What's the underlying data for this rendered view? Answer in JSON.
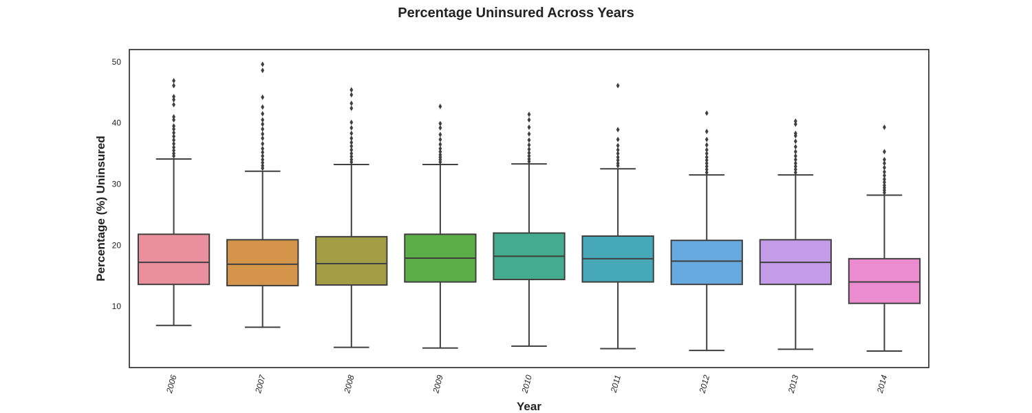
{
  "chart_data": {
    "type": "box",
    "title": "Percentage Uninsured Across Years",
    "xlabel": "Year",
    "ylabel": "Percentage (%) Uninsured",
    "ylim": [
      0,
      52
    ],
    "yticks": [
      10,
      20,
      30,
      40,
      50
    ],
    "grid": false,
    "categories": [
      "2006",
      "2007",
      "2008",
      "2009",
      "2010",
      "2011",
      "2012",
      "2013",
      "2014"
    ],
    "colors": [
      "#ea8f9d",
      "#d4944a",
      "#a39d45",
      "#5cae48",
      "#45ab8e",
      "#47a8b8",
      "#67aae0",
      "#c39be6",
      "#ea8ccf"
    ],
    "boxes": [
      {
        "min": 6.9,
        "q1": 13.6,
        "median": 17.2,
        "q3": 21.8,
        "max": 34.1,
        "outliers": [
          34.6,
          35.0,
          35.5,
          36.0,
          36.6,
          37.2,
          37.8,
          38.4,
          39.0,
          39.5,
          40.5,
          41.0,
          43.0,
          43.8,
          44.3,
          46.1,
          46.9
        ]
      },
      {
        "min": 6.6,
        "q1": 13.4,
        "median": 16.9,
        "q3": 20.9,
        "max": 32.1,
        "outliers": [
          32.6,
          33.0,
          33.5,
          34.0,
          34.6,
          35.2,
          35.8,
          36.6,
          37.5,
          38.2,
          39.0,
          39.8,
          40.5,
          41.5,
          42.6,
          44.2,
          48.6,
          49.6
        ]
      },
      {
        "min": 3.3,
        "q1": 13.5,
        "median": 17.0,
        "q3": 21.4,
        "max": 33.2,
        "outliers": [
          33.6,
          34.0,
          34.5,
          35.0,
          35.6,
          36.2,
          36.8,
          37.5,
          38.3,
          39.2,
          40.1,
          42.4,
          43.2,
          44.6,
          45.4
        ]
      },
      {
        "min": 3.2,
        "q1": 14.0,
        "median": 17.9,
        "q3": 21.8,
        "max": 33.2,
        "outliers": [
          33.6,
          34.0,
          34.4,
          34.8,
          35.3,
          35.8,
          36.5,
          37.3,
          38.1,
          39.2,
          39.9,
          42.7
        ]
      },
      {
        "min": 3.5,
        "q1": 14.4,
        "median": 18.2,
        "q3": 22.0,
        "max": 33.3,
        "outliers": [
          33.7,
          34.1,
          34.6,
          35.1,
          35.7,
          36.4,
          37.2,
          38.2,
          39.3,
          40.5,
          41.4
        ]
      },
      {
        "min": 3.1,
        "q1": 14.0,
        "median": 17.8,
        "q3": 21.5,
        "max": 32.5,
        "outliers": [
          33.0,
          33.4,
          33.9,
          34.4,
          35.0,
          35.6,
          36.3,
          37.3,
          38.9,
          46.1
        ]
      },
      {
        "min": 2.8,
        "q1": 13.6,
        "median": 17.4,
        "q3": 20.8,
        "max": 31.5,
        "outliers": [
          31.9,
          32.4,
          32.9,
          33.4,
          33.9,
          34.4,
          35.0,
          35.6,
          36.4,
          37.3,
          38.6,
          41.6
        ]
      },
      {
        "min": 3.0,
        "q1": 13.6,
        "median": 17.2,
        "q3": 20.9,
        "max": 31.5,
        "outliers": [
          31.9,
          32.4,
          32.9,
          33.4,
          34.0,
          34.6,
          35.3,
          36.1,
          37.0,
          37.9,
          38.3,
          39.8,
          40.3
        ]
      },
      {
        "min": 2.7,
        "q1": 10.5,
        "median": 14.0,
        "q3": 17.8,
        "max": 28.2,
        "outliers": [
          28.6,
          29.0,
          29.4,
          29.8,
          30.3,
          30.8,
          31.4,
          32.0,
          32.7,
          33.4,
          34.0,
          35.3,
          39.3
        ]
      }
    ]
  }
}
